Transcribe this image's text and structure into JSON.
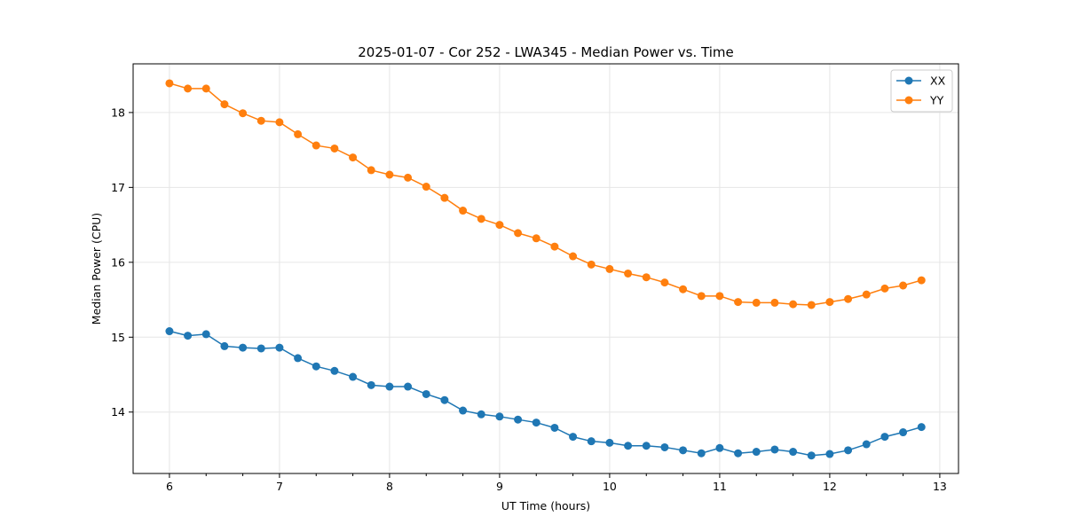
{
  "chart_data": {
    "type": "line",
    "title": "2025-01-07 - Cor 252 - LWA345 - Median Power vs. Time",
    "xlabel": "UT Time (hours)",
    "ylabel": "Median Power (CPU)",
    "xlim": [
      5.67,
      13.17
    ],
    "ylim": [
      13.18,
      18.65
    ],
    "xticks": [
      6,
      7,
      8,
      9,
      10,
      11,
      12,
      13
    ],
    "xtick_labels": [
      "6",
      "7",
      "8",
      "9",
      "10",
      "11",
      "12",
      "13"
    ],
    "yticks": [
      14,
      15,
      16,
      17,
      18
    ],
    "ytick_labels": [
      "14",
      "15",
      "16",
      "17",
      "18"
    ],
    "grid": true,
    "legend_position": "top-right",
    "x": [
      6.0,
      6.1667,
      6.3333,
      6.5,
      6.6667,
      6.8333,
      7.0,
      7.1667,
      7.3333,
      7.5,
      7.6667,
      7.8333,
      8.0,
      8.1667,
      8.3333,
      8.5,
      8.6667,
      8.8333,
      9.0,
      9.1667,
      9.3333,
      9.5,
      9.6667,
      9.8333,
      10.0,
      10.1667,
      10.3333,
      10.5,
      10.6667,
      10.8333,
      11.0,
      11.1667,
      11.3333,
      11.5,
      11.6667,
      11.8333,
      12.0,
      12.1667,
      12.3333,
      12.5,
      12.6667,
      12.8333
    ],
    "series": [
      {
        "name": "XX",
        "color": "#1f77b4",
        "values": [
          15.08,
          15.02,
          15.04,
          14.88,
          14.86,
          14.85,
          14.86,
          14.72,
          14.61,
          14.55,
          14.47,
          14.36,
          14.34,
          14.34,
          14.24,
          14.16,
          14.02,
          13.97,
          13.94,
          13.9,
          13.86,
          13.79,
          13.67,
          13.61,
          13.59,
          13.55,
          13.55,
          13.53,
          13.49,
          13.45,
          13.52,
          13.45,
          13.47,
          13.5,
          13.47,
          13.42,
          13.44,
          13.49,
          13.57,
          13.67,
          13.73,
          13.8
        ]
      },
      {
        "name": "YY",
        "color": "#ff7f0e",
        "values": [
          18.39,
          18.32,
          18.32,
          18.11,
          17.99,
          17.89,
          17.87,
          17.71,
          17.56,
          17.52,
          17.4,
          17.23,
          17.17,
          17.13,
          17.01,
          16.86,
          16.69,
          16.58,
          16.5,
          16.39,
          16.32,
          16.21,
          16.08,
          15.97,
          15.91,
          15.85,
          15.8,
          15.73,
          15.64,
          15.55,
          15.55,
          15.47,
          15.46,
          15.46,
          15.44,
          15.43,
          15.47,
          15.51,
          15.57,
          15.65,
          15.69,
          15.76
        ]
      }
    ]
  }
}
